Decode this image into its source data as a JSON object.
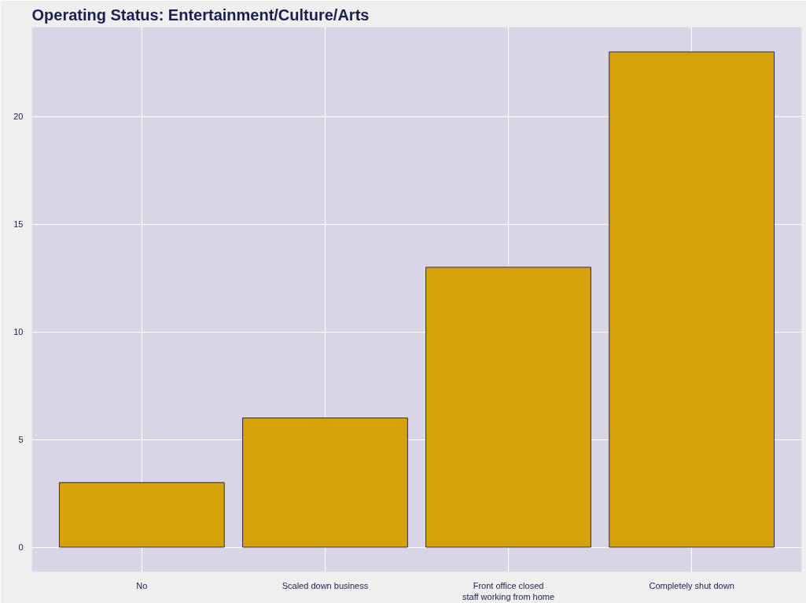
{
  "chart_data": {
    "type": "bar",
    "title": "Operating Status: Entertainment/Culture/Arts",
    "categories": [
      "No",
      "Scaled down business",
      "Front office closed\nstaff working from home",
      "Completely shut down"
    ],
    "values": [
      3,
      6,
      13,
      23
    ],
    "color": "#d6a20a",
    "ylim": [
      -1.15,
      24.15
    ],
    "yticks": [
      0,
      5,
      10,
      15,
      20
    ],
    "grid": true
  }
}
